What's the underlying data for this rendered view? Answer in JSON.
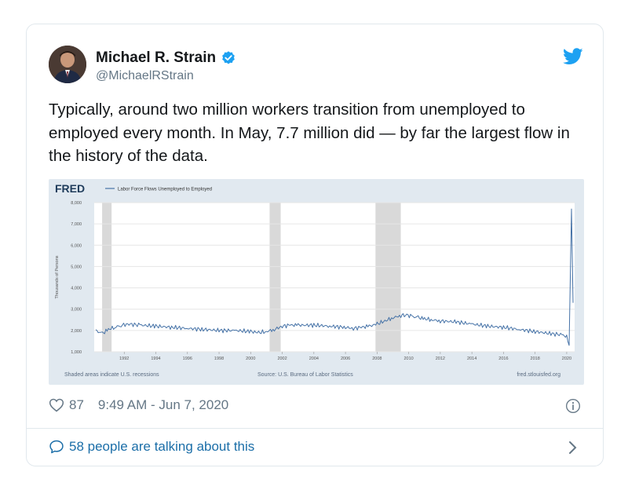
{
  "tweet": {
    "author_name": "Michael R. Strain",
    "author_handle": "@MichaelRStrain",
    "text": "Typically, around two million workers transition from unemployed to employed every month. In May, 7.7 million did — by far the largest flow in the history of the data.",
    "likes": "87",
    "timestamp": "9:49 AM - Jun 7, 2020",
    "talking": "58 people are talking about this"
  },
  "colors": {
    "verified": "#1da1f2",
    "link": "#1b6ea8",
    "series": "#4572a7",
    "recession": "#d9d9d9"
  },
  "chart_data": {
    "type": "line",
    "logo": "FRED",
    "legend": "Labor Force Flows Unemployed to Employed",
    "ylabel": "Thousands of Persons",
    "y_ticks": [
      "8,000",
      "7,000",
      "6,000",
      "5,000",
      "4,000",
      "3,000",
      "2,000",
      "1,000"
    ],
    "ylim": [
      1000,
      8000
    ],
    "x_ticks": [
      "1992",
      "1994",
      "1996",
      "1998",
      "2000",
      "2002",
      "2004",
      "2006",
      "2008",
      "2010",
      "2012",
      "2014",
      "2016",
      "2018",
      "2020"
    ],
    "xlim": [
      1990.1,
      2020.5
    ],
    "recessions": [
      [
        1990.6,
        1991.2
      ],
      [
        2001.2,
        2001.9
      ],
      [
        2007.9,
        2009.5
      ]
    ],
    "note_left": "Shaded areas indicate U.S. recessions",
    "source": "Source: U.S. Bureau of Labor Statistics",
    "site": "fred.stlouisfed.org",
    "series": [
      {
        "x": [
          1990.2,
          1990.6,
          1991.0,
          1991.4,
          1991.8,
          1992.3,
          1993.0,
          1994.0,
          1995.0,
          1996.0,
          1997.0,
          1998.0,
          1999.0,
          2000.0,
          2000.5,
          2001.0,
          2001.5,
          2002.0,
          2002.5,
          2003.0,
          2004.0,
          2005.0,
          2006.0,
          2006.5,
          2007.0,
          2007.5,
          2008.0,
          2008.5,
          2009.0,
          2009.5,
          2009.8,
          2010.2,
          2010.6,
          2011.0,
          2011.5,
          2012.0,
          2013.0,
          2014.0,
          2015.0,
          2016.0,
          2017.0,
          2018.0,
          2019.0,
          2019.7,
          2020.0,
          2020.15,
          2020.3,
          2020.4
        ],
        "y": [
          2000,
          1850,
          2050,
          2150,
          2250,
          2300,
          2250,
          2200,
          2150,
          2100,
          2050,
          2000,
          2000,
          1950,
          1900,
          1950,
          2050,
          2200,
          2250,
          2250,
          2250,
          2200,
          2150,
          2100,
          2150,
          2200,
          2300,
          2450,
          2600,
          2700,
          2750,
          2650,
          2600,
          2550,
          2500,
          2450,
          2400,
          2300,
          2200,
          2150,
          2050,
          1950,
          1850,
          1800,
          1700,
          1300,
          7700,
          3300
        ]
      }
    ]
  }
}
